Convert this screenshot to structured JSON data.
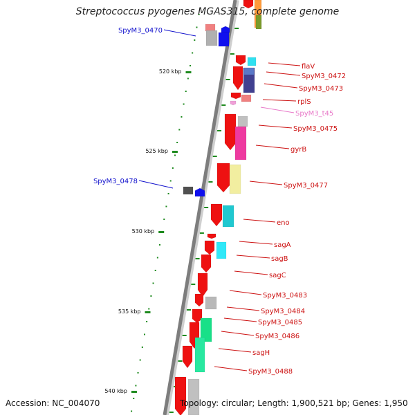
{
  "title": "Streptococcus pyogenes MGAS315, complete genome",
  "footer": {
    "accession": "Accession: NC_004070",
    "topology": "Topology: circular; Length: 1,900,521 bp; Genes: 1,950"
  },
  "colors": {
    "backbone": "#7d7d7d",
    "tick": "#1e8a1e",
    "blue_label": "#1010cc",
    "red_label": "#cc1010",
    "pink_label": "#e878c8"
  },
  "kbp_ticks": [
    "520 kbp",
    "525 kbp",
    "530 kbp",
    "535 kbp",
    "540 kbp"
  ],
  "gene_labels": [
    {
      "text": "SpyM3_0470",
      "color": "#1010cc"
    },
    {
      "text": "flaV",
      "color": "#cc1010"
    },
    {
      "text": "SpyM3_0472",
      "color": "#cc1010"
    },
    {
      "text": "SpyM3_0473",
      "color": "#cc1010"
    },
    {
      "text": "rplS",
      "color": "#cc1010"
    },
    {
      "text": "SpyM3_t45",
      "color": "#e878c8"
    },
    {
      "text": "SpyM3_0475",
      "color": "#cc1010"
    },
    {
      "text": "gyrB",
      "color": "#cc1010"
    },
    {
      "text": "SpyM3_0478",
      "color": "#1010cc"
    },
    {
      "text": "SpyM3_0477",
      "color": "#cc1010"
    },
    {
      "text": "eno",
      "color": "#cc1010"
    },
    {
      "text": "sagA",
      "color": "#cc1010"
    },
    {
      "text": "sagB",
      "color": "#cc1010"
    },
    {
      "text": "sagC",
      "color": "#cc1010"
    },
    {
      "text": "SpyM3_0483",
      "color": "#cc1010"
    },
    {
      "text": "SpyM3_0484",
      "color": "#cc1010"
    },
    {
      "text": "SpyM3_0485",
      "color": "#cc1010"
    },
    {
      "text": "SpyM3_0486",
      "color": "#cc1010"
    },
    {
      "text": "sagH",
      "color": "#cc1010"
    },
    {
      "text": "SpyM3_0488",
      "color": "#cc1010"
    }
  ]
}
